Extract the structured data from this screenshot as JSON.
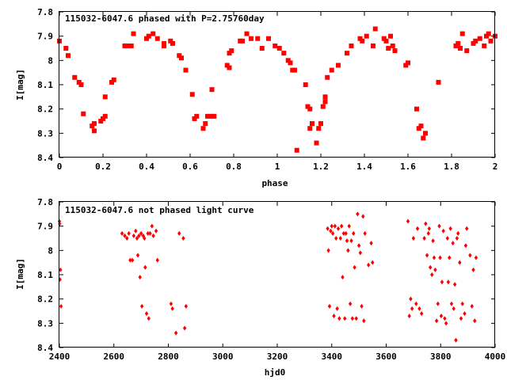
{
  "chart_data": [
    {
      "type": "scatter",
      "title": "115032-6047.6 phased with P=2.75760day",
      "xlabel": "phase",
      "ylabel": "I[mag]",
      "xlim": [
        0,
        2
      ],
      "ylim": [
        8.4,
        7.8
      ],
      "y_inverted": true,
      "xticks": [
        "0",
        "0.2",
        "0.4",
        "0.6",
        "0.8",
        "1",
        "1.2",
        "1.4",
        "1.6",
        "1.8",
        "2"
      ],
      "yticks": [
        "7.8",
        "7.9",
        "8",
        "8.1",
        "8.2",
        "8.3",
        "8.4"
      ],
      "grid": false,
      "marker_color": "#ff0000",
      "points": [
        [
          0.0,
          7.92
        ],
        [
          0.03,
          7.95
        ],
        [
          0.04,
          7.98
        ],
        [
          0.07,
          8.07
        ],
        [
          0.09,
          8.09
        ],
        [
          0.1,
          8.1
        ],
        [
          0.11,
          8.22
        ],
        [
          0.15,
          8.27
        ],
        [
          0.16,
          8.29
        ],
        [
          0.16,
          8.26
        ],
        [
          0.19,
          8.25
        ],
        [
          0.2,
          8.24
        ],
        [
          0.21,
          8.23
        ],
        [
          0.21,
          8.15
        ],
        [
          0.24,
          8.09
        ],
        [
          0.25,
          8.08
        ],
        [
          0.3,
          7.94
        ],
        [
          0.31,
          7.94
        ],
        [
          0.33,
          7.94
        ],
        [
          0.34,
          7.89
        ],
        [
          0.4,
          7.91
        ],
        [
          0.41,
          7.9
        ],
        [
          0.43,
          7.89
        ],
        [
          0.45,
          7.91
        ],
        [
          0.48,
          7.93
        ],
        [
          0.48,
          7.94
        ],
        [
          0.51,
          7.92
        ],
        [
          0.52,
          7.93
        ],
        [
          0.55,
          7.98
        ],
        [
          0.56,
          7.99
        ],
        [
          0.58,
          8.04
        ],
        [
          0.61,
          8.14
        ],
        [
          0.62,
          8.24
        ],
        [
          0.63,
          8.23
        ],
        [
          0.66,
          8.28
        ],
        [
          0.67,
          8.26
        ],
        [
          0.68,
          8.23
        ],
        [
          0.7,
          8.23
        ],
        [
          0.7,
          8.12
        ],
        [
          0.71,
          8.23
        ],
        [
          0.77,
          8.02
        ],
        [
          0.78,
          8.03
        ],
        [
          0.78,
          7.97
        ],
        [
          0.79,
          7.96
        ],
        [
          0.83,
          7.92
        ],
        [
          0.84,
          7.92
        ],
        [
          0.86,
          7.89
        ],
        [
          0.88,
          7.91
        ],
        [
          0.91,
          7.91
        ],
        [
          0.93,
          7.95
        ],
        [
          0.96,
          7.91
        ],
        [
          0.99,
          7.94
        ],
        [
          1.01,
          7.95
        ],
        [
          1.03,
          7.97
        ],
        [
          1.05,
          8.0
        ],
        [
          1.06,
          8.01
        ],
        [
          1.07,
          8.04
        ],
        [
          1.08,
          8.04
        ],
        [
          1.09,
          8.37
        ],
        [
          1.13,
          8.1
        ],
        [
          1.14,
          8.19
        ],
        [
          1.15,
          8.2
        ],
        [
          1.15,
          8.28
        ],
        [
          1.16,
          8.26
        ],
        [
          1.18,
          8.34
        ],
        [
          1.19,
          8.28
        ],
        [
          1.2,
          8.26
        ],
        [
          1.21,
          8.19
        ],
        [
          1.22,
          8.17
        ],
        [
          1.22,
          8.15
        ],
        [
          1.23,
          8.07
        ],
        [
          1.25,
          8.04
        ],
        [
          1.28,
          8.02
        ],
        [
          1.32,
          7.97
        ],
        [
          1.34,
          7.94
        ],
        [
          1.38,
          7.91
        ],
        [
          1.39,
          7.92
        ],
        [
          1.41,
          7.9
        ],
        [
          1.44,
          7.94
        ],
        [
          1.45,
          7.87
        ],
        [
          1.49,
          7.91
        ],
        [
          1.5,
          7.92
        ],
        [
          1.51,
          7.95
        ],
        [
          1.52,
          7.9
        ],
        [
          1.53,
          7.94
        ],
        [
          1.54,
          7.96
        ],
        [
          1.59,
          8.02
        ],
        [
          1.6,
          8.01
        ],
        [
          1.64,
          8.2
        ],
        [
          1.65,
          8.28
        ],
        [
          1.66,
          8.27
        ],
        [
          1.67,
          8.32
        ],
        [
          1.68,
          8.3
        ],
        [
          1.74,
          8.09
        ],
        [
          1.82,
          7.94
        ],
        [
          1.83,
          7.93
        ],
        [
          1.84,
          7.95
        ],
        [
          1.85,
          7.89
        ],
        [
          1.87,
          7.96
        ],
        [
          1.9,
          7.93
        ],
        [
          1.91,
          7.92
        ],
        [
          1.93,
          7.91
        ],
        [
          1.95,
          7.94
        ],
        [
          1.96,
          7.9
        ],
        [
          1.97,
          7.89
        ],
        [
          1.98,
          7.92
        ],
        [
          2.0,
          7.9
        ]
      ]
    },
    {
      "type": "scatter",
      "title": "115032-6047.6 not phased light curve",
      "xlabel": "hjd0",
      "ylabel": "I[mag]",
      "xlim": [
        2400,
        4000
      ],
      "ylim": [
        8.4,
        7.8
      ],
      "y_inverted": true,
      "xticks": [
        "2400",
        "2600",
        "2800",
        "3000",
        "3200",
        "3400",
        "3600",
        "3800",
        "4000"
      ],
      "yticks": [
        "7.8",
        "7.9",
        "8",
        "8.1",
        "8.2",
        "8.3",
        "8.4"
      ],
      "grid": false,
      "marker_color": "#ff0000",
      "points": [
        [
          2400,
          7.88
        ],
        [
          2401,
          7.89
        ],
        [
          2402,
          8.12
        ],
        [
          2404,
          8.08
        ],
        [
          2406,
          8.23
        ],
        [
          2630,
          7.93
        ],
        [
          2640,
          7.94
        ],
        [
          2648,
          7.95
        ],
        [
          2655,
          7.93
        ],
        [
          2660,
          8.04
        ],
        [
          2668,
          8.04
        ],
        [
          2673,
          7.94
        ],
        [
          2680,
          7.92
        ],
        [
          2685,
          7.95
        ],
        [
          2688,
          8.02
        ],
        [
          2692,
          7.94
        ],
        [
          2696,
          8.11
        ],
        [
          2700,
          7.93
        ],
        [
          2703,
          8.23
        ],
        [
          2708,
          7.94
        ],
        [
          2712,
          7.95
        ],
        [
          2715,
          8.07
        ],
        [
          2720,
          8.26
        ],
        [
          2725,
          7.93
        ],
        [
          2728,
          8.28
        ],
        [
          2733,
          7.93
        ],
        [
          2740,
          7.9
        ],
        [
          2745,
          7.94
        ],
        [
          2755,
          7.92
        ],
        [
          2760,
          8.04
        ],
        [
          2810,
          8.22
        ],
        [
          2815,
          8.24
        ],
        [
          2828,
          8.34
        ],
        [
          2840,
          7.93
        ],
        [
          2855,
          7.95
        ],
        [
          2860,
          8.32
        ],
        [
          2865,
          8.23
        ],
        [
          3385,
          7.91
        ],
        [
          3388,
          8.0
        ],
        [
          3392,
          8.23
        ],
        [
          3396,
          7.92
        ],
        [
          3400,
          7.9
        ],
        [
          3404,
          7.93
        ],
        [
          3408,
          8.27
        ],
        [
          3412,
          7.9
        ],
        [
          3416,
          7.95
        ],
        [
          3420,
          8.24
        ],
        [
          3424,
          7.91
        ],
        [
          3428,
          8.28
        ],
        [
          3432,
          7.95
        ],
        [
          3436,
          7.9
        ],
        [
          3440,
          8.11
        ],
        [
          3444,
          7.93
        ],
        [
          3448,
          8.28
        ],
        [
          3452,
          7.93
        ],
        [
          3456,
          7.96
        ],
        [
          3460,
          8.0
        ],
        [
          3464,
          7.9
        ],
        [
          3468,
          8.22
        ],
        [
          3472,
          7.96
        ],
        [
          3476,
          8.28
        ],
        [
          3480,
          7.93
        ],
        [
          3484,
          8.07
        ],
        [
          3490,
          8.28
        ],
        [
          3495,
          7.85
        ],
        [
          3500,
          7.98
        ],
        [
          3505,
          8.01
        ],
        [
          3510,
          8.23
        ],
        [
          3515,
          7.86
        ],
        [
          3518,
          8.29
        ],
        [
          3522,
          7.93
        ],
        [
          3535,
          8.06
        ],
        [
          3545,
          7.97
        ],
        [
          3550,
          8.05
        ],
        [
          3680,
          7.88
        ],
        [
          3685,
          8.27
        ],
        [
          3690,
          8.2
        ],
        [
          3695,
          8.24
        ],
        [
          3700,
          7.95
        ],
        [
          3710,
          8.22
        ],
        [
          3715,
          7.91
        ],
        [
          3722,
          8.24
        ],
        [
          3730,
          8.26
        ],
        [
          3740,
          7.95
        ],
        [
          3745,
          7.89
        ],
        [
          3750,
          8.02
        ],
        [
          3755,
          7.93
        ],
        [
          3758,
          7.91
        ],
        [
          3762,
          8.07
        ],
        [
          3768,
          8.1
        ],
        [
          3772,
          7.96
        ],
        [
          3776,
          8.03
        ],
        [
          3780,
          8.08
        ],
        [
          3785,
          8.29
        ],
        [
          3790,
          8.22
        ],
        [
          3795,
          7.9
        ],
        [
          3798,
          8.03
        ],
        [
          3802,
          8.27
        ],
        [
          3805,
          8.13
        ],
        [
          3810,
          7.92
        ],
        [
          3815,
          8.28
        ],
        [
          3820,
          8.3
        ],
        [
          3825,
          7.95
        ],
        [
          3828,
          8.13
        ],
        [
          3832,
          8.03
        ],
        [
          3836,
          7.91
        ],
        [
          3840,
          8.22
        ],
        [
          3845,
          7.97
        ],
        [
          3848,
          8.24
        ],
        [
          3852,
          8.14
        ],
        [
          3856,
          8.37
        ],
        [
          3860,
          7.95
        ],
        [
          3864,
          7.93
        ],
        [
          3870,
          8.05
        ],
        [
          3875,
          8.28
        ],
        [
          3880,
          8.22
        ],
        [
          3888,
          8.26
        ],
        [
          3892,
          7.98
        ],
        [
          3896,
          7.91
        ],
        [
          3908,
          8.02
        ],
        [
          3915,
          8.23
        ],
        [
          3920,
          8.08
        ],
        [
          3925,
          8.29
        ],
        [
          3930,
          8.03
        ]
      ]
    }
  ]
}
